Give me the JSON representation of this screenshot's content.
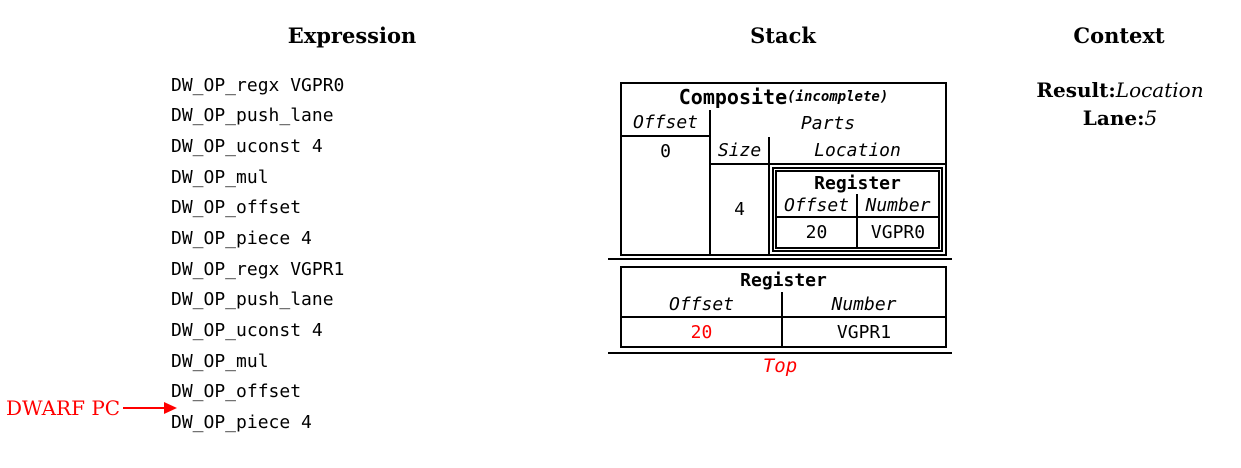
{
  "headers": {
    "expression": "Expression",
    "stack": "Stack",
    "context": "Context"
  },
  "expression": {
    "ops": [
      "DW_OP_regx VGPR0",
      "DW_OP_push_lane",
      "DW_OP_uconst 4",
      "DW_OP_mul",
      "DW_OP_offset",
      "DW_OP_piece 4",
      "DW_OP_regx VGPR1",
      "DW_OP_push_lane",
      "DW_OP_uconst 4",
      "DW_OP_mul",
      "DW_OP_offset",
      "DW_OP_piece 4"
    ],
    "pc_label": "DWARF PC",
    "pc_points_between": [
      "DW_OP_offset",
      "DW_OP_piece 4"
    ]
  },
  "stack": {
    "composite": {
      "title": "Composite",
      "subtitle": "(incomplete)",
      "offset_header": "Offset",
      "offset_value": "0",
      "parts_header": "Parts",
      "size_header": "Size",
      "size_value": "4",
      "location_header": "Location",
      "register": {
        "title": "Register",
        "offset_header": "Offset",
        "offset_value": "20",
        "number_header": "Number",
        "number_value": "VGPR0"
      }
    },
    "register": {
      "title": "Register",
      "offset_header": "Offset",
      "offset_value": "20",
      "number_header": "Number",
      "number_value": "VGPR1"
    },
    "top_label": "Top"
  },
  "context": {
    "result_label": "Result:",
    "result_value": "Location",
    "lane_label": "Lane:",
    "lane_value": "5"
  },
  "colors": {
    "accent_red": "#ff0000",
    "line": "#000000"
  }
}
